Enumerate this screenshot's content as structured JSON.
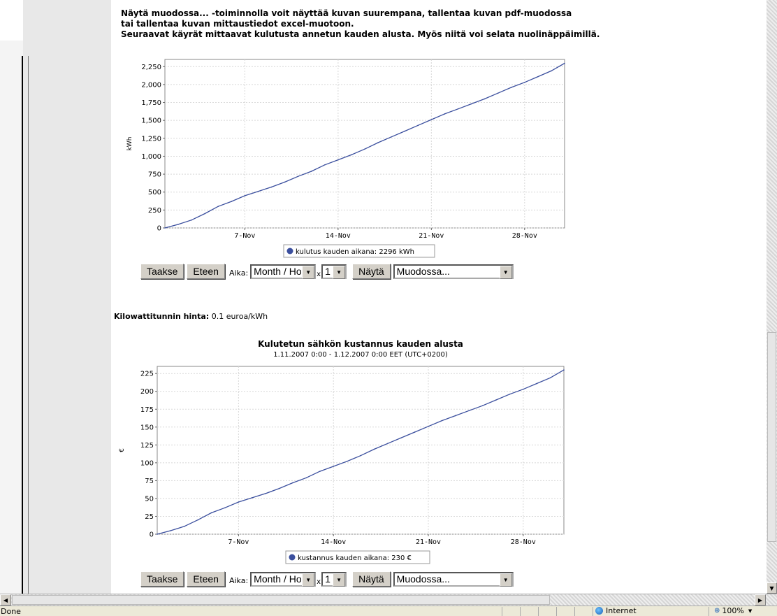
{
  "intro": {
    "line1": "Näytä muodossa... -toiminnolla voit näyttää kuvan suurempana, tallentaa kuvan pdf-muodossa",
    "line2": "tai tallentaa kuvan mittaustiedot excel-muotoon.",
    "line3": "Seuraavat käyrät mittaavat kulutusta annetun kauden alusta. Myös niitä voi selata nuolinäppäimillä."
  },
  "controls1": {
    "back_label": "Taakse",
    "forward_label": "Eteen",
    "aika_label": "Aika:",
    "resolution_value": "Month / Hour",
    "multiplier_label": "x",
    "multiplier_value": "1",
    "show_label": "Näytä",
    "format_value": "Muodossa..."
  },
  "price": {
    "label": "Kilowattitunnin hinta:",
    "value": "0.1 euroa/kWh"
  },
  "controls2": {
    "back_label": "Taakse",
    "forward_label": "Eteen",
    "aika_label": "Aika:",
    "resolution_value": "Month / Hour",
    "multiplier_label": "x",
    "multiplier_value": "1",
    "show_label": "Näytä",
    "format_value": "Muodossa..."
  },
  "chart_data": [
    {
      "type": "line",
      "title": "",
      "subtitle": "",
      "xlabel": "",
      "ylabel": "kWh",
      "x_ticks": [
        "7-Nov",
        "14-Nov",
        "21-Nov",
        "28-Nov"
      ],
      "x_tick_days": [
        7,
        14,
        21,
        28
      ],
      "xlim_days": [
        1,
        31
      ],
      "ylim": [
        0,
        2350
      ],
      "y_ticks": [
        0,
        250,
        500,
        750,
        1000,
        1250,
        1500,
        1750,
        2000,
        2250
      ],
      "y_tick_labels": [
        "0",
        "250",
        "500",
        "750",
        "1,000",
        "1,250",
        "1,500",
        "1,750",
        "2,000",
        "2,250"
      ],
      "grid": true,
      "legend_position": "bottom",
      "series": [
        {
          "name": "kulutus kauden aikana: 2296 kWh",
          "color": "#3b4f9e",
          "x_days": [
            1,
            2,
            3,
            4,
            5,
            6,
            7,
            8,
            9,
            10,
            11,
            12,
            13,
            14,
            15,
            16,
            17,
            18,
            19,
            20,
            21,
            22,
            23,
            24,
            25,
            26,
            27,
            28,
            29,
            30,
            31
          ],
          "values": [
            0,
            50,
            110,
            200,
            300,
            370,
            450,
            510,
            570,
            640,
            720,
            790,
            880,
            950,
            1020,
            1100,
            1190,
            1270,
            1350,
            1430,
            1510,
            1590,
            1660,
            1730,
            1800,
            1880,
            1960,
            2030,
            2110,
            2190,
            2296
          ]
        }
      ]
    },
    {
      "type": "line",
      "title": "Kulutetun sähkön kustannus kauden alusta",
      "subtitle": "1.11.2007 0:00 - 1.12.2007 0:00 EET (UTC+0200)",
      "xlabel": "",
      "ylabel": "€",
      "x_ticks": [
        "7-Nov",
        "14-Nov",
        "21-Nov",
        "28-Nov"
      ],
      "x_tick_days": [
        7,
        14,
        21,
        28
      ],
      "xlim_days": [
        1,
        31
      ],
      "ylim": [
        0,
        235
      ],
      "y_ticks": [
        0,
        25,
        50,
        75,
        100,
        125,
        150,
        175,
        200,
        225
      ],
      "y_tick_labels": [
        "0",
        "25",
        "50",
        "75",
        "100",
        "125",
        "150",
        "175",
        "200",
        "225"
      ],
      "grid": true,
      "legend_position": "bottom",
      "series": [
        {
          "name": "kustannus kauden aikana: 230 €",
          "color": "#3b4f9e",
          "x_days": [
            1,
            2,
            3,
            4,
            5,
            6,
            7,
            8,
            9,
            10,
            11,
            12,
            13,
            14,
            15,
            16,
            17,
            18,
            19,
            20,
            21,
            22,
            23,
            24,
            25,
            26,
            27,
            28,
            29,
            30,
            31
          ],
          "values": [
            0,
            5,
            11,
            20,
            30,
            37,
            45,
            51,
            57,
            64,
            72,
            79,
            88,
            95,
            102,
            110,
            119,
            127,
            135,
            143,
            151,
            159,
            166,
            173,
            180,
            188,
            196,
            203,
            211,
            219,
            230
          ]
        }
      ]
    }
  ],
  "statusbar": {
    "status": "Done",
    "zone": "Internet",
    "zoom": "100%"
  }
}
